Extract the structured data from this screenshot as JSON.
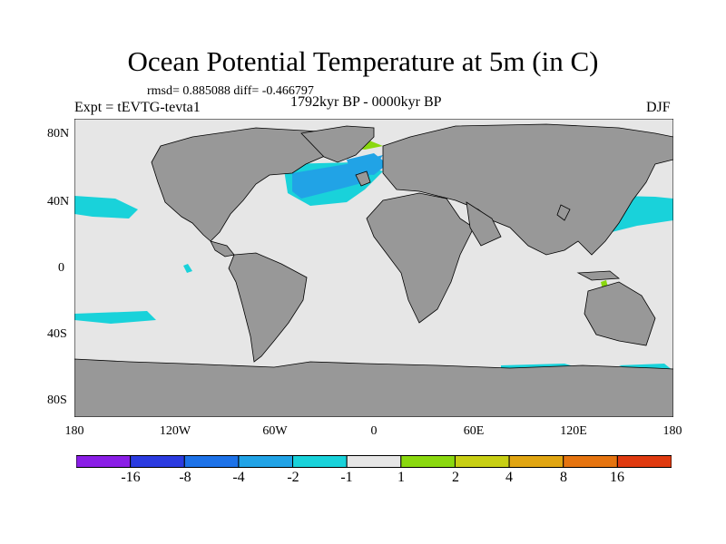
{
  "title": "Ocean Potential Temperature at 5m (in C)",
  "stats": {
    "text": "rmsd= 0.885088 diff= -0.466797"
  },
  "experiment": "Expt = tEVTG-tevta1",
  "period": "1792kyr BP - 0000kyr BP",
  "season": "DJF",
  "lat_labels": [
    "80N",
    "40N",
    "0",
    "40S",
    "80S"
  ],
  "lon_labels": [
    "180",
    "120W",
    "60W",
    "0",
    "60E",
    "120E",
    "180"
  ],
  "colorbar": {
    "colors": [
      "#8a1ee6",
      "#2b3be0",
      "#1d72e8",
      "#21a3e6",
      "#19d2da",
      "#e6e6e6",
      "#8ad80f",
      "#c8cf14",
      "#e0a512",
      "#e57410",
      "#df3a10"
    ],
    "labels": [
      "-16",
      "-8",
      "-4",
      "-2",
      "-1",
      "1",
      "2",
      "4",
      "8",
      "16"
    ]
  },
  "colors": {
    "land": "#989898",
    "ocean": "#e6e6e6",
    "coast": "#000000"
  }
}
